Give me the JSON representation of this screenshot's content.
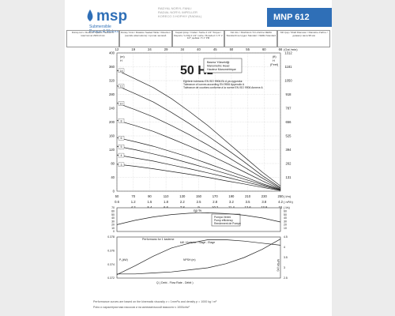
{
  "header": {
    "brand": "msp",
    "brand_sub": [
      "Submersible",
      "Pumps & Motors"
    ],
    "subtitle_lines": [
      "RADYAL NORYL FANLI",
      "RADIAL NORYL IMPELLER",
      "KORECO 3 HOPHIY (RADIAL)"
    ],
    "model": "MNP 612",
    "model_color": "#2f6fb7"
  },
  "spec_cells": [
    "Dönüş Hızı / Rotation Speed / vitesse fu rotac'ionnel 2900 d/min",
    "Dönüş Yönü / Rotation Sealed Table / Direction (sentido alternations) / против часовой",
    "Kaçak Çıkışı / Outlet / Sortie 2 1/2\" Torque / Raports / H Diğ 2 1/2\" nortie / Roteded / 1 5\" 2 1/2\" дюйма / 5 1\" РМ",
    "NH Uzu / Shaft End / Fin d'arbre NEMA Standard'ına Uygun Standart / NEMA Standard",
    "Nth Çap / Shaft Diameter / Diamètre d'arbre / диаметр вала 98 мм"
  ],
  "notes": [
    "Performance curves are based on the kinematic viscosity v = 1mm²/s and density p = 1000 kg / m³",
    "Pobo и характеристики насосов и на кинематичской вязкости v 1000кг/м³"
  ],
  "chart_data": [
    {
      "type": "line",
      "title": "50 Hz",
      "ylabel_left": [
        "(m)",
        "H"
      ],
      "ylabel_right": [
        "(ft)",
        "H",
        "(Feet)"
      ],
      "xlim": [
        12,
        66
      ],
      "top_axis_label": "(Gal /min)",
      "top_ticks": [
        12,
        19,
        24,
        29,
        34,
        40,
        45,
        50,
        55,
        60,
        66
      ],
      "left_ticks": [
        0,
        40,
        80,
        120,
        160,
        200,
        240,
        280,
        320,
        360,
        400
      ],
      "ylim": [
        0,
        400
      ],
      "right_ticks": [
        "131",
        "262",
        "394",
        "525",
        "656",
        "787",
        "918",
        "1050",
        "1181",
        "1312"
      ],
      "bottom_axes": [
        {
          "unit": "( l/m)",
          "ticks": [
            "50",
            "70",
            "90",
            "110",
            "130",
            "150",
            "170",
            "190",
            "210",
            "230",
            "250"
          ]
        },
        {
          "unit": "( m³/h)",
          "ticks": [
            "0.6",
            "1.2",
            "1.5",
            "1.8",
            "2.2",
            "2.5",
            "2.8",
            "3.2",
            "3.5",
            "3.8",
            "4.2"
          ]
        },
        {
          "unit": "( l/s)",
          "ticks": [
            "",
            "4.2",
            "5.4",
            "6.6",
            "7.8",
            "9",
            "10.2",
            "11.4",
            "12.6",
            "13.8",
            "15"
          ]
        }
      ],
      "legend_box": [
        "Basma Yüksekliği",
        "Manometric Head",
        "Hauteur Manométrique"
      ],
      "tolerance_text": [
        "Eğrilerin toleransı EN ISO 9906:Ek A ya uygundur.",
        "Tolerance of curves according EN 9906 Appendix A",
        "Tolérance de courbes conforme à la norme EN ISO 9906 Annexe A"
      ],
      "series": [
        {
          "name": "14",
          "values": [
            350,
            325,
            300,
            268,
            230,
            190,
            145,
            100,
            55,
            15
          ]
        },
        {
          "name": "12",
          "values": [
            305,
            282,
            258,
            228,
            195,
            160,
            123,
            85,
            45,
            10
          ]
        },
        {
          "name": "10",
          "values": [
            255,
            236,
            215,
            190,
            163,
            134,
            102,
            70,
            38,
            8
          ]
        },
        {
          "name": "8",
          "values": [
            205,
            190,
            173,
            152,
            130,
            107,
            82,
            56,
            30,
            6
          ]
        },
        {
          "name": "6",
          "values": [
            155,
            143,
            130,
            114,
            98,
            80,
            61,
            42,
            22,
            5
          ]
        },
        {
          "name": "5",
          "values": [
            130,
            120,
            108,
            95,
            81,
            66,
            51,
            35,
            19,
            4
          ]
        },
        {
          "name": "4",
          "values": [
            105,
            96,
            87,
            76,
            65,
            53,
            41,
            28,
            15,
            3
          ]
        },
        {
          "name": "3",
          "values": [
            78,
            72,
            65,
            57,
            49,
            40,
            30,
            21,
            11,
            2
          ]
        }
      ],
      "x": [
        12,
        18,
        24,
        30,
        36,
        42,
        48,
        54,
        60,
        66
      ]
    },
    {
      "type": "line",
      "ylabel": "ηp %",
      "ylim": [
        0,
        70
      ],
      "left_ticks": [
        "70",
        "60",
        "50",
        "40",
        "30",
        "20",
        "10",
        "0"
      ],
      "right_ticks": [
        "60",
        "50",
        "40",
        "30",
        "20",
        "10"
      ],
      "legend_box": [
        "Pompa Verimi",
        "Pump efficiency",
        "Rendement de Pompe"
      ],
      "x": [
        12,
        18,
        24,
        30,
        36,
        42,
        48,
        54,
        60,
        66
      ],
      "series": [
        {
          "name": "",
          "values": [
            20,
            33,
            43,
            50,
            54,
            55,
            53,
            48,
            40,
            28
          ]
        }
      ]
    },
    {
      "type": "line",
      "left_ticks": [
        "0.378",
        "0.376",
        "0.374",
        "0.372"
      ],
      "right_ticks": [
        "4.5",
        "4",
        "3.5",
        "3",
        "2.5"
      ],
      "top_label": "Performans for 1 stage",
      "top_label_prefix": "Performans for 1 kademe",
      "series_labels": [
        "kW / Kademe - Stage - Etage",
        "NPSH (m)"
      ],
      "axis_label_left_top": "P₂(kW)",
      "axis_label_right": "NPSH (m)",
      "bottom_label": "Q ( Debi - Flow Rate - Débit )",
      "x": [
        12,
        18,
        24,
        30,
        36,
        42,
        48,
        54,
        60,
        66
      ],
      "series": [
        {
          "name": "kW / Kademe - Stage - Etage",
          "values": [
            0.3725,
            0.3738,
            0.3752,
            0.3764,
            0.3771,
            0.3776,
            0.3776,
            0.3774,
            0.3771,
            0.3768
          ]
        },
        {
          "name": "NPSH (m)",
          "values": [
            2.7,
            2.7,
            2.75,
            2.8,
            2.9,
            3.0,
            3.2,
            3.5,
            3.9,
            4.4
          ]
        }
      ]
    }
  ]
}
